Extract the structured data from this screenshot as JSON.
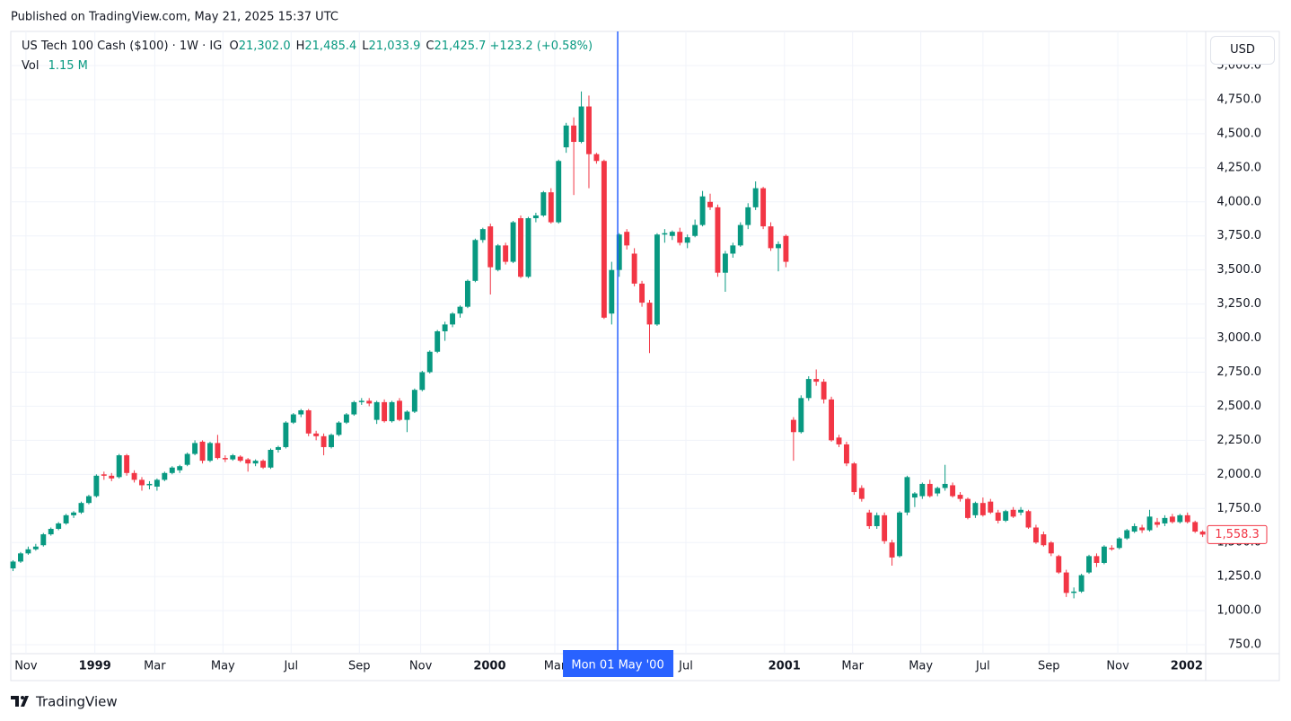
{
  "header": {
    "published": "Published on TradingView.com, May 21, 2025 15:37 UTC",
    "brand": "TradingView"
  },
  "chart_data": {
    "type": "candlestick",
    "symbol": "US Tech 100 Cash ($100) · 1W · IG",
    "legend": [
      {
        "key": "O",
        "value": "21,302.0"
      },
      {
        "key": "H",
        "value": "21,485.4"
      },
      {
        "key": "L",
        "value": "21,033.9"
      },
      {
        "key": "C",
        "value": "21,425.7"
      }
    ],
    "change": "+123.2 (+0.58%)",
    "volume": {
      "key": "Vol",
      "value": "1.15 M"
    },
    "currency": "USD",
    "up_color": "#089981",
    "down_color": "#f23645",
    "grid": true,
    "crosshair": {
      "x": 79.8,
      "label": "Mon 01 May '00"
    },
    "last_price_label": "1,558.3",
    "xlim": [
      -0.3,
      157.4
    ],
    "xticks": [
      {
        "value": 1.7,
        "label": "Nov"
      },
      {
        "value": 10.8,
        "label": "1999"
      },
      {
        "value": 18.7,
        "label": "Mar"
      },
      {
        "value": 27.7,
        "label": "May"
      },
      {
        "value": 36.7,
        "label": "Jul"
      },
      {
        "value": 45.7,
        "label": "Sep"
      },
      {
        "value": 53.8,
        "label": "Nov"
      },
      {
        "value": 62.9,
        "label": "2000"
      },
      {
        "value": 71.5,
        "label": "Mar"
      },
      {
        "value": 88.8,
        "label": "Jul"
      },
      {
        "value": 101.8,
        "label": "2001"
      },
      {
        "value": 110.8,
        "label": "Mar"
      },
      {
        "value": 119.8,
        "label": "May"
      },
      {
        "value": 128,
        "label": "Jul"
      },
      {
        "value": 136.7,
        "label": "Sep"
      },
      {
        "value": 145.8,
        "label": "Nov"
      },
      {
        "value": 154.9,
        "label": "2002"
      }
    ],
    "ylim": [
      700,
      5250
    ],
    "yticks": [
      {
        "value": 750,
        "label": "750.0"
      },
      {
        "value": 1000,
        "label": "1,000.0"
      },
      {
        "value": 1250,
        "label": "1,250.0"
      },
      {
        "value": 1500,
        "label": "1,500.0"
      },
      {
        "value": 1750,
        "label": "1,750.0"
      },
      {
        "value": 2000,
        "label": "2,000.0"
      },
      {
        "value": 2250,
        "label": "2,250.0"
      },
      {
        "value": 2500,
        "label": "2,500.0"
      },
      {
        "value": 2750,
        "label": "2,750.0"
      },
      {
        "value": 3000,
        "label": "3,000.0"
      },
      {
        "value": 3250,
        "label": "3,250.0"
      },
      {
        "value": 3500,
        "label": "3,500.0"
      },
      {
        "value": 3750,
        "label": "3,750.0"
      },
      {
        "value": 4000,
        "label": "4,000.0"
      },
      {
        "value": 4250,
        "label": "4,250.0"
      },
      {
        "value": 4500,
        "label": "4,500.0"
      },
      {
        "value": 4750,
        "label": "4,750.0"
      },
      {
        "value": 5000,
        "label": "5,000.0"
      }
    ],
    "ohlc": [
      [
        1310,
        1370,
        1290,
        1360
      ],
      [
        1360,
        1430,
        1350,
        1420
      ],
      [
        1420,
        1470,
        1410,
        1450
      ],
      [
        1450,
        1490,
        1440,
        1470
      ],
      [
        1480,
        1570,
        1470,
        1560
      ],
      [
        1560,
        1610,
        1550,
        1600
      ],
      [
        1600,
        1650,
        1590,
        1640
      ],
      [
        1640,
        1710,
        1630,
        1700
      ],
      [
        1700,
        1730,
        1680,
        1720
      ],
      [
        1720,
        1800,
        1710,
        1790
      ],
      [
        1790,
        1850,
        1780,
        1840
      ],
      [
        1840,
        2000,
        1830,
        1990
      ],
      [
        2000,
        2020,
        1960,
        1990
      ],
      [
        1990,
        2010,
        1950,
        1970
      ],
      [
        1980,
        2150,
        1970,
        2140
      ],
      [
        2140,
        2150,
        1990,
        2010
      ],
      [
        2010,
        2030,
        1940,
        1960
      ],
      [
        1960,
        1980,
        1880,
        1920
      ],
      [
        1920,
        1950,
        1890,
        1930
      ],
      [
        1910,
        1970,
        1880,
        1960
      ],
      [
        1960,
        2020,
        1950,
        2010
      ],
      [
        2010,
        2060,
        2000,
        2050
      ],
      [
        2030,
        2070,
        2010,
        2060
      ],
      [
        2070,
        2160,
        2060,
        2150
      ],
      [
        2150,
        2250,
        2140,
        2230
      ],
      [
        2240,
        2250,
        2080,
        2100
      ],
      [
        2100,
        2240,
        2090,
        2230
      ],
      [
        2230,
        2290,
        2110,
        2120
      ],
      [
        2120,
        2140,
        2090,
        2110
      ],
      [
        2110,
        2150,
        2100,
        2140
      ],
      [
        2130,
        2140,
        2090,
        2100
      ],
      [
        2110,
        2120,
        2020,
        2080
      ],
      [
        2080,
        2110,
        2060,
        2100
      ],
      [
        2100,
        2110,
        2040,
        2050
      ],
      [
        2050,
        2190,
        2040,
        2180
      ],
      [
        2180,
        2210,
        2160,
        2200
      ],
      [
        2200,
        2390,
        2190,
        2380
      ],
      [
        2380,
        2450,
        2370,
        2440
      ],
      [
        2440,
        2480,
        2420,
        2470
      ],
      [
        2470,
        2480,
        2280,
        2300
      ],
      [
        2300,
        2320,
        2250,
        2280
      ],
      [
        2280,
        2300,
        2140,
        2200
      ],
      [
        2200,
        2300,
        2190,
        2290
      ],
      [
        2290,
        2390,
        2280,
        2380
      ],
      [
        2380,
        2450,
        2370,
        2440
      ],
      [
        2440,
        2540,
        2430,
        2530
      ],
      [
        2530,
        2560,
        2510,
        2540
      ],
      [
        2540,
        2560,
        2500,
        2520
      ],
      [
        2400,
        2540,
        2370,
        2530
      ],
      [
        2530,
        2550,
        2380,
        2390
      ],
      [
        2390,
        2540,
        2380,
        2530
      ],
      [
        2540,
        2560,
        2390,
        2400
      ],
      [
        2400,
        2470,
        2310,
        2460
      ],
      [
        2460,
        2630,
        2450,
        2620
      ],
      [
        2620,
        2760,
        2610,
        2750
      ],
      [
        2750,
        2910,
        2740,
        2900
      ],
      [
        2900,
        3060,
        2890,
        3050
      ],
      [
        3050,
        3120,
        2980,
        3100
      ],
      [
        3100,
        3190,
        3080,
        3180
      ],
      [
        3180,
        3240,
        3150,
        3230
      ],
      [
        3230,
        3430,
        3220,
        3420
      ],
      [
        3420,
        3730,
        3410,
        3720
      ],
      [
        3720,
        3810,
        3700,
        3800
      ],
      [
        3820,
        3840,
        3320,
        3520
      ],
      [
        3500,
        3690,
        3490,
        3680
      ],
      [
        3680,
        3700,
        3540,
        3560
      ],
      [
        3560,
        3860,
        3550,
        3850
      ],
      [
        3880,
        3900,
        3440,
        3450
      ],
      [
        3450,
        3890,
        3440,
        3880
      ],
      [
        3880,
        3920,
        3850,
        3900
      ],
      [
        3900,
        4080,
        3890,
        4070
      ],
      [
        4070,
        4100,
        3840,
        3850
      ],
      [
        3850,
        4310,
        3840,
        4300
      ],
      [
        4400,
        4580,
        4360,
        4560
      ],
      [
        4560,
        4620,
        4050,
        4440
      ],
      [
        4440,
        4810,
        4430,
        4700
      ],
      [
        4700,
        4780,
        4100,
        4350
      ],
      [
        4350,
        4360,
        4280,
        4300
      ],
      [
        4300,
        4310,
        3140,
        3150
      ],
      [
        3180,
        3560,
        3100,
        3500
      ],
      [
        3500,
        3770,
        3450,
        3760
      ],
      [
        3780,
        3800,
        3650,
        3680
      ],
      [
        3620,
        3660,
        3380,
        3400
      ],
      [
        3400,
        3420,
        3230,
        3260
      ],
      [
        3260,
        3280,
        2890,
        3100
      ],
      [
        3100,
        3770,
        3090,
        3760
      ],
      [
        3760,
        3800,
        3700,
        3770
      ],
      [
        3750,
        3790,
        3720,
        3780
      ],
      [
        3780,
        3810,
        3680,
        3700
      ],
      [
        3700,
        3760,
        3660,
        3740
      ],
      [
        3750,
        3870,
        3740,
        3830
      ],
      [
        3830,
        4080,
        3820,
        4040
      ],
      [
        4000,
        4060,
        3940,
        3960
      ],
      [
        3960,
        3980,
        3450,
        3480
      ],
      [
        3480,
        3640,
        3340,
        3620
      ],
      [
        3620,
        3700,
        3590,
        3680
      ],
      [
        3680,
        3850,
        3670,
        3830
      ],
      [
        3830,
        3990,
        3800,
        3960
      ],
      [
        3960,
        4150,
        3940,
        4100
      ],
      [
        4100,
        4110,
        3800,
        3820
      ],
      [
        3820,
        3850,
        3640,
        3660
      ],
      [
        3660,
        3710,
        3490,
        3690
      ],
      [
        3750,
        3760,
        3520,
        3560
      ],
      [
        2400,
        2420,
        2100,
        2310
      ],
      [
        2310,
        2580,
        2300,
        2560
      ],
      [
        2560,
        2720,
        2540,
        2700
      ],
      [
        2700,
        2770,
        2650,
        2680
      ],
      [
        2680,
        2700,
        2520,
        2550
      ],
      [
        2550,
        2570,
        2240,
        2250
      ],
      [
        2270,
        2290,
        2200,
        2220
      ],
      [
        2220,
        2240,
        2060,
        2080
      ],
      [
        2080,
        2090,
        1850,
        1870
      ],
      [
        1900,
        1920,
        1800,
        1820
      ],
      [
        1720,
        1740,
        1600,
        1620
      ],
      [
        1620,
        1720,
        1600,
        1700
      ],
      [
        1700,
        1720,
        1490,
        1510
      ],
      [
        1500,
        1520,
        1330,
        1390
      ],
      [
        1400,
        1730,
        1390,
        1720
      ],
      [
        1720,
        1990,
        1700,
        1980
      ],
      [
        1830,
        1870,
        1760,
        1860
      ],
      [
        1840,
        1940,
        1820,
        1930
      ],
      [
        1930,
        1960,
        1830,
        1840
      ],
      [
        1860,
        1910,
        1840,
        1900
      ],
      [
        1900,
        2070,
        1880,
        1930
      ],
      [
        1920,
        1940,
        1830,
        1840
      ],
      [
        1850,
        1870,
        1800,
        1820
      ],
      [
        1820,
        1830,
        1670,
        1680
      ],
      [
        1700,
        1800,
        1680,
        1790
      ],
      [
        1790,
        1830,
        1690,
        1700
      ],
      [
        1800,
        1820,
        1710,
        1720
      ],
      [
        1720,
        1740,
        1640,
        1660
      ],
      [
        1660,
        1740,
        1650,
        1730
      ],
      [
        1740,
        1760,
        1680,
        1690
      ],
      [
        1720,
        1760,
        1700,
        1740
      ],
      [
        1730,
        1740,
        1600,
        1610
      ],
      [
        1610,
        1630,
        1490,
        1500
      ],
      [
        1560,
        1580,
        1470,
        1480
      ],
      [
        1500,
        1510,
        1400,
        1420
      ],
      [
        1400,
        1410,
        1270,
        1280
      ],
      [
        1280,
        1300,
        1100,
        1130
      ],
      [
        1130,
        1170,
        1090,
        1140
      ],
      [
        1140,
        1270,
        1130,
        1260
      ],
      [
        1280,
        1410,
        1270,
        1400
      ],
      [
        1400,
        1420,
        1320,
        1350
      ],
      [
        1350,
        1480,
        1340,
        1470
      ],
      [
        1460,
        1480,
        1440,
        1450
      ],
      [
        1460,
        1540,
        1450,
        1530
      ],
      [
        1530,
        1600,
        1520,
        1590
      ],
      [
        1580,
        1640,
        1570,
        1620
      ],
      [
        1610,
        1630,
        1570,
        1590
      ],
      [
        1590,
        1740,
        1580,
        1690
      ],
      [
        1650,
        1680,
        1610,
        1630
      ],
      [
        1640,
        1700,
        1620,
        1680
      ],
      [
        1690,
        1710,
        1640,
        1650
      ],
      [
        1650,
        1710,
        1640,
        1700
      ],
      [
        1700,
        1720,
        1640,
        1650
      ],
      [
        1650,
        1660,
        1570,
        1580
      ],
      [
        1580,
        1590,
        1540,
        1558.3
      ]
    ]
  }
}
